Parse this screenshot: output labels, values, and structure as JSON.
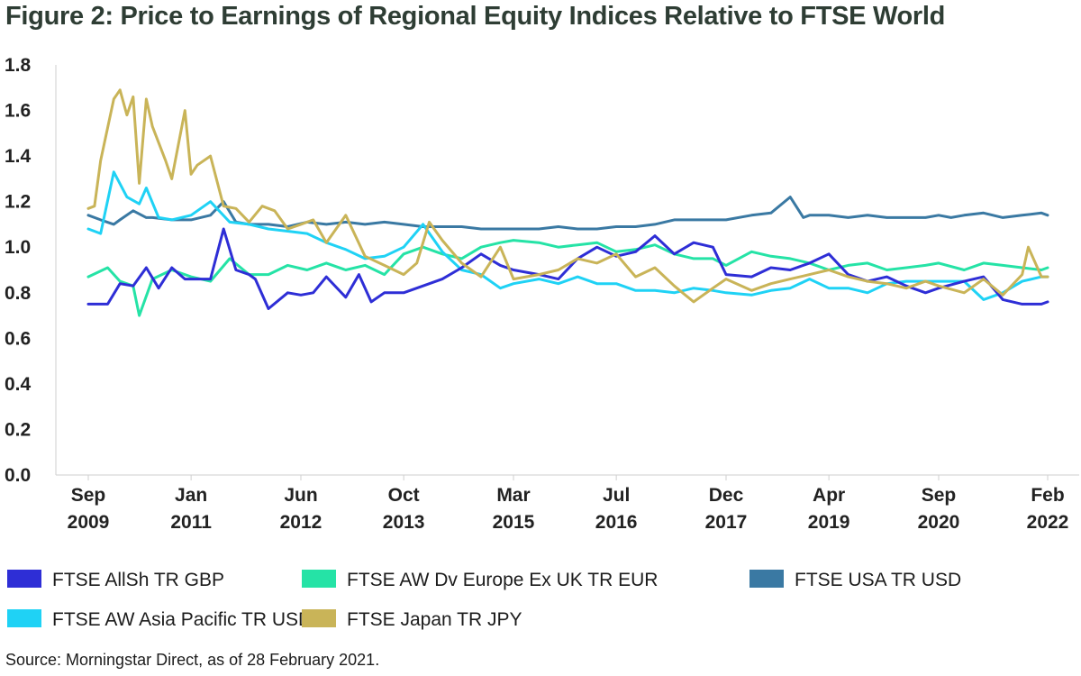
{
  "chart_data": {
    "type": "line",
    "title": "Figure 2: Price to Earnings of Regional Equity Indices Relative to FTSE World",
    "xlabel": "",
    "ylabel": "",
    "ylim": [
      0.0,
      1.8
    ],
    "yticks": [
      "0.0",
      "0.2",
      "0.4",
      "0.6",
      "0.8",
      "1.0",
      "1.2",
      "1.4",
      "1.6",
      "1.8"
    ],
    "xlim": [
      2009.67,
      2022.25
    ],
    "xticks": [
      {
        "value": 2009.67,
        "label_top": "Sep",
        "label_bottom": "2009"
      },
      {
        "value": 2011.0,
        "label_top": "Jan",
        "label_bottom": "2011"
      },
      {
        "value": 2012.42,
        "label_top": "Jun",
        "label_bottom": "2012"
      },
      {
        "value": 2013.75,
        "label_top": "Oct",
        "label_bottom": "2013"
      },
      {
        "value": 2015.17,
        "label_top": "Mar",
        "label_bottom": "2015"
      },
      {
        "value": 2016.5,
        "label_top": "Jul",
        "label_bottom": "2016"
      },
      {
        "value": 2017.92,
        "label_top": "Dec",
        "label_bottom": "2017"
      },
      {
        "value": 2019.25,
        "label_top": "Apr",
        "label_bottom": "2019"
      },
      {
        "value": 2020.67,
        "label_top": "Sep",
        "label_bottom": "2020"
      },
      {
        "value": 2022.08,
        "label_top": "Feb",
        "label_bottom": "2022"
      }
    ],
    "legend_placement": "bottom",
    "series": [
      {
        "name": "FTSE AllSh TR GBP",
        "color": "#2e2ed6",
        "x": [
          2009.67,
          2009.92,
          2010.08,
          2010.25,
          2010.42,
          2010.58,
          2010.75,
          2010.92,
          2011.0,
          2011.25,
          2011.42,
          2011.58,
          2011.75,
          2011.83,
          2012.0,
          2012.25,
          2012.42,
          2012.58,
          2012.75,
          2013.0,
          2013.17,
          2013.33,
          2013.5,
          2013.75,
          2014.0,
          2014.25,
          2014.5,
          2014.75,
          2015.0,
          2015.17,
          2015.5,
          2015.75,
          2016.0,
          2016.25,
          2016.5,
          2016.75,
          2017.0,
          2017.25,
          2017.5,
          2017.75,
          2017.92,
          2018.25,
          2018.5,
          2018.75,
          2019.0,
          2019.25,
          2019.5,
          2019.75,
          2020.0,
          2020.25,
          2020.5,
          2020.67,
          2021.0,
          2021.25,
          2021.5,
          2021.75,
          2022.0,
          2022.08
        ],
        "values": [
          0.75,
          0.75,
          0.84,
          0.83,
          0.91,
          0.82,
          0.91,
          0.86,
          0.86,
          0.86,
          1.08,
          0.9,
          0.88,
          0.86,
          0.73,
          0.8,
          0.79,
          0.8,
          0.87,
          0.78,
          0.88,
          0.76,
          0.8,
          0.8,
          0.83,
          0.86,
          0.91,
          0.97,
          0.92,
          0.9,
          0.88,
          0.86,
          0.95,
          1.0,
          0.96,
          0.98,
          1.05,
          0.97,
          1.02,
          1.0,
          0.88,
          0.87,
          0.91,
          0.9,
          0.93,
          0.97,
          0.88,
          0.85,
          0.87,
          0.83,
          0.8,
          0.82,
          0.85,
          0.87,
          0.77,
          0.75,
          0.75,
          0.76
        ]
      },
      {
        "name": "FTSE AW Dv Europe Ex UK TR EUR",
        "color": "#25e3a6",
        "x": [
          2009.67,
          2009.92,
          2010.08,
          2010.25,
          2010.33,
          2010.5,
          2010.75,
          2011.0,
          2011.25,
          2011.5,
          2011.75,
          2012.0,
          2012.25,
          2012.5,
          2012.75,
          2013.0,
          2013.25,
          2013.5,
          2013.75,
          2014.0,
          2014.25,
          2014.5,
          2014.75,
          2015.0,
          2015.17,
          2015.5,
          2015.75,
          2016.0,
          2016.25,
          2016.5,
          2016.75,
          2017.0,
          2017.25,
          2017.5,
          2017.75,
          2017.92,
          2018.25,
          2018.5,
          2018.75,
          2019.0,
          2019.25,
          2019.5,
          2019.75,
          2020.0,
          2020.25,
          2020.5,
          2020.67,
          2021.0,
          2021.25,
          2021.5,
          2021.75,
          2022.0,
          2022.08
        ],
        "values": [
          0.87,
          0.91,
          0.85,
          0.83,
          0.7,
          0.86,
          0.9,
          0.87,
          0.85,
          0.95,
          0.88,
          0.88,
          0.92,
          0.9,
          0.93,
          0.9,
          0.92,
          0.88,
          0.97,
          1.0,
          0.97,
          0.95,
          1.0,
          1.02,
          1.03,
          1.02,
          1.0,
          1.01,
          1.02,
          0.98,
          0.99,
          1.01,
          0.97,
          0.95,
          0.95,
          0.92,
          0.98,
          0.96,
          0.95,
          0.93,
          0.9,
          0.92,
          0.93,
          0.9,
          0.91,
          0.92,
          0.93,
          0.9,
          0.93,
          0.92,
          0.91,
          0.9,
          0.91
        ]
      },
      {
        "name": "FTSE USA TR USD",
        "color": "#3a79a3",
        "x": [
          2009.67,
          2009.83,
          2010.0,
          2010.08,
          2010.25,
          2010.42,
          2010.5,
          2010.75,
          2011.0,
          2011.25,
          2011.42,
          2011.58,
          2011.75,
          2012.0,
          2012.25,
          2012.5,
          2012.75,
          2013.0,
          2013.25,
          2013.5,
          2013.75,
          2014.0,
          2014.25,
          2014.5,
          2014.75,
          2015.0,
          2015.17,
          2015.5,
          2015.75,
          2016.0,
          2016.25,
          2016.5,
          2016.75,
          2017.0,
          2017.25,
          2017.5,
          2017.75,
          2017.92,
          2018.25,
          2018.5,
          2018.75,
          2018.92,
          2019.0,
          2019.25,
          2019.5,
          2019.75,
          2020.0,
          2020.25,
          2020.5,
          2020.67,
          2020.83,
          2021.0,
          2021.25,
          2021.5,
          2021.75,
          2022.0,
          2022.08
        ],
        "values": [
          1.14,
          1.12,
          1.1,
          1.12,
          1.16,
          1.13,
          1.13,
          1.12,
          1.12,
          1.14,
          1.2,
          1.11,
          1.1,
          1.1,
          1.09,
          1.11,
          1.1,
          1.11,
          1.1,
          1.11,
          1.1,
          1.09,
          1.09,
          1.09,
          1.08,
          1.08,
          1.08,
          1.08,
          1.09,
          1.08,
          1.08,
          1.09,
          1.09,
          1.1,
          1.12,
          1.12,
          1.12,
          1.12,
          1.14,
          1.15,
          1.22,
          1.13,
          1.14,
          1.14,
          1.13,
          1.14,
          1.13,
          1.13,
          1.13,
          1.14,
          1.13,
          1.14,
          1.15,
          1.13,
          1.14,
          1.15,
          1.14
        ]
      },
      {
        "name": "FTSE AW Asia Pacific TR USD",
        "color": "#1fd2f5",
        "x": [
          2009.67,
          2009.83,
          2010.0,
          2010.17,
          2010.33,
          2010.42,
          2010.58,
          2010.75,
          2011.0,
          2011.25,
          2011.5,
          2011.75,
          2012.0,
          2012.25,
          2012.5,
          2012.75,
          2013.0,
          2013.25,
          2013.5,
          2013.75,
          2014.0,
          2014.25,
          2014.5,
          2014.75,
          2015.0,
          2015.17,
          2015.5,
          2015.75,
          2016.0,
          2016.25,
          2016.5,
          2016.75,
          2017.0,
          2017.25,
          2017.5,
          2017.75,
          2017.92,
          2018.25,
          2018.5,
          2018.75,
          2019.0,
          2019.25,
          2019.5,
          2019.75,
          2020.0,
          2020.25,
          2020.5,
          2020.67,
          2021.0,
          2021.25,
          2021.5,
          2021.75,
          2022.0,
          2022.08
        ],
        "values": [
          1.08,
          1.06,
          1.33,
          1.22,
          1.19,
          1.26,
          1.13,
          1.12,
          1.14,
          1.2,
          1.11,
          1.1,
          1.08,
          1.07,
          1.06,
          1.02,
          0.99,
          0.95,
          0.96,
          1.0,
          1.1,
          0.98,
          0.9,
          0.88,
          0.82,
          0.84,
          0.86,
          0.84,
          0.87,
          0.84,
          0.84,
          0.81,
          0.81,
          0.8,
          0.82,
          0.81,
          0.8,
          0.79,
          0.81,
          0.82,
          0.86,
          0.82,
          0.82,
          0.8,
          0.84,
          0.85,
          0.85,
          0.85,
          0.85,
          0.77,
          0.8,
          0.85,
          0.87,
          0.87
        ]
      },
      {
        "name": "FTSE Japan TR JPY",
        "color": "#c9b458",
        "x": [
          2009.67,
          2009.75,
          2009.83,
          2010.0,
          2010.08,
          2010.17,
          2010.25,
          2010.33,
          2010.42,
          2010.5,
          2010.67,
          2010.75,
          2010.92,
          2011.0,
          2011.08,
          2011.25,
          2011.42,
          2011.58,
          2011.75,
          2011.92,
          2012.08,
          2012.25,
          2012.42,
          2012.58,
          2012.75,
          2013.0,
          2013.25,
          2013.5,
          2013.75,
          2013.92,
          2014.08,
          2014.25,
          2014.5,
          2014.75,
          2015.0,
          2015.17,
          2015.5,
          2015.75,
          2016.0,
          2016.25,
          2016.5,
          2016.75,
          2017.0,
          2017.25,
          2017.5,
          2017.75,
          2017.92,
          2018.25,
          2018.5,
          2018.75,
          2019.0,
          2019.25,
          2019.5,
          2019.75,
          2020.0,
          2020.25,
          2020.5,
          2020.67,
          2021.0,
          2021.25,
          2021.5,
          2021.75,
          2021.83,
          2022.0,
          2022.08
        ],
        "values": [
          1.17,
          1.18,
          1.38,
          1.65,
          1.69,
          1.58,
          1.66,
          1.28,
          1.65,
          1.53,
          1.38,
          1.3,
          1.6,
          1.32,
          1.36,
          1.4,
          1.18,
          1.17,
          1.11,
          1.18,
          1.16,
          1.08,
          1.1,
          1.12,
          1.02,
          1.14,
          0.96,
          0.92,
          0.88,
          0.93,
          1.11,
          1.03,
          0.93,
          0.87,
          1.0,
          0.86,
          0.88,
          0.9,
          0.95,
          0.93,
          0.97,
          0.87,
          0.91,
          0.83,
          0.76,
          0.82,
          0.86,
          0.81,
          0.84,
          0.86,
          0.88,
          0.9,
          0.87,
          0.85,
          0.84,
          0.82,
          0.85,
          0.83,
          0.8,
          0.86,
          0.79,
          0.88,
          1.0,
          0.87,
          0.87
        ]
      }
    ],
    "legend_rows": [
      [
        0,
        1,
        2
      ],
      [
        3,
        4
      ]
    ]
  },
  "source_note": "Source: Morningstar Direct, as of 28 February 2021."
}
